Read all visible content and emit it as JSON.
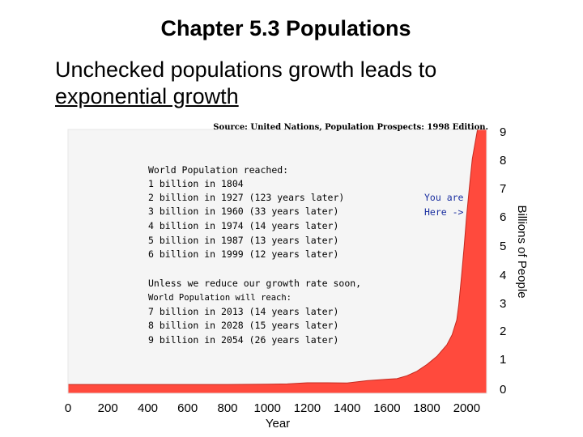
{
  "slide": {
    "title": "Chapter 5.3 Populations",
    "body_line1": "Unchecked populations growth leads to",
    "body_line2": "exponential growth"
  },
  "chart_data": {
    "type": "area",
    "source_note": "Source: United Nations, Population Prospects: 1998 Edition.",
    "xlabel": "Year",
    "ylabel": "Billions of People",
    "xlim": [
      0,
      2100
    ],
    "ylim": [
      0,
      9
    ],
    "x_ticks": [
      0,
      200,
      400,
      600,
      800,
      1000,
      1200,
      1400,
      1600,
      1800,
      2000
    ],
    "y_ticks": [
      0,
      1,
      2,
      3,
      4,
      5,
      6,
      7,
      8,
      9
    ],
    "grid": false,
    "fill_color": "#ff4a3d",
    "series": [
      {
        "x": [
          0,
          200,
          400,
          600,
          800,
          1000,
          1100,
          1200,
          1300,
          1400,
          1500,
          1600,
          1650,
          1700,
          1750,
          1800,
          1804,
          1850,
          1900,
          1927,
          1950,
          1960,
          1974,
          1987,
          1999,
          2013,
          2028,
          2054,
          2100
        ],
        "y": [
          0.3,
          0.3,
          0.3,
          0.3,
          0.3,
          0.31,
          0.32,
          0.36,
          0.36,
          0.35,
          0.43,
          0.48,
          0.5,
          0.6,
          0.75,
          0.98,
          1,
          1.26,
          1.65,
          2,
          2.5,
          3,
          4,
          5,
          6,
          7,
          8,
          9,
          9.6
        ]
      }
    ],
    "annotations": {
      "reached_heading": "World Population reached:",
      "reached": [
        "1 billion in 1804",
        "2 billion in 1927 (123 years later)",
        "3 billion in 1960 (33 years later)",
        "4 billion in 1974 (14 years later)",
        "5 billion in 1987 (13 years later)",
        "6 billion in 1999 (12 years later)"
      ],
      "projection_heading1": "Unless we reduce our growth rate soon,",
      "projection_heading2": "World Population will reach:",
      "projection": [
        "7 billion in 2013 (14 years later)",
        "8 billion in 2028 (15 years later)",
        "9 billion in 2054 (26 years later)"
      ],
      "you_are_here_line1": "You are",
      "you_are_here_line2": "Here ->",
      "you_are_here_color": "#1a2fa0"
    }
  }
}
